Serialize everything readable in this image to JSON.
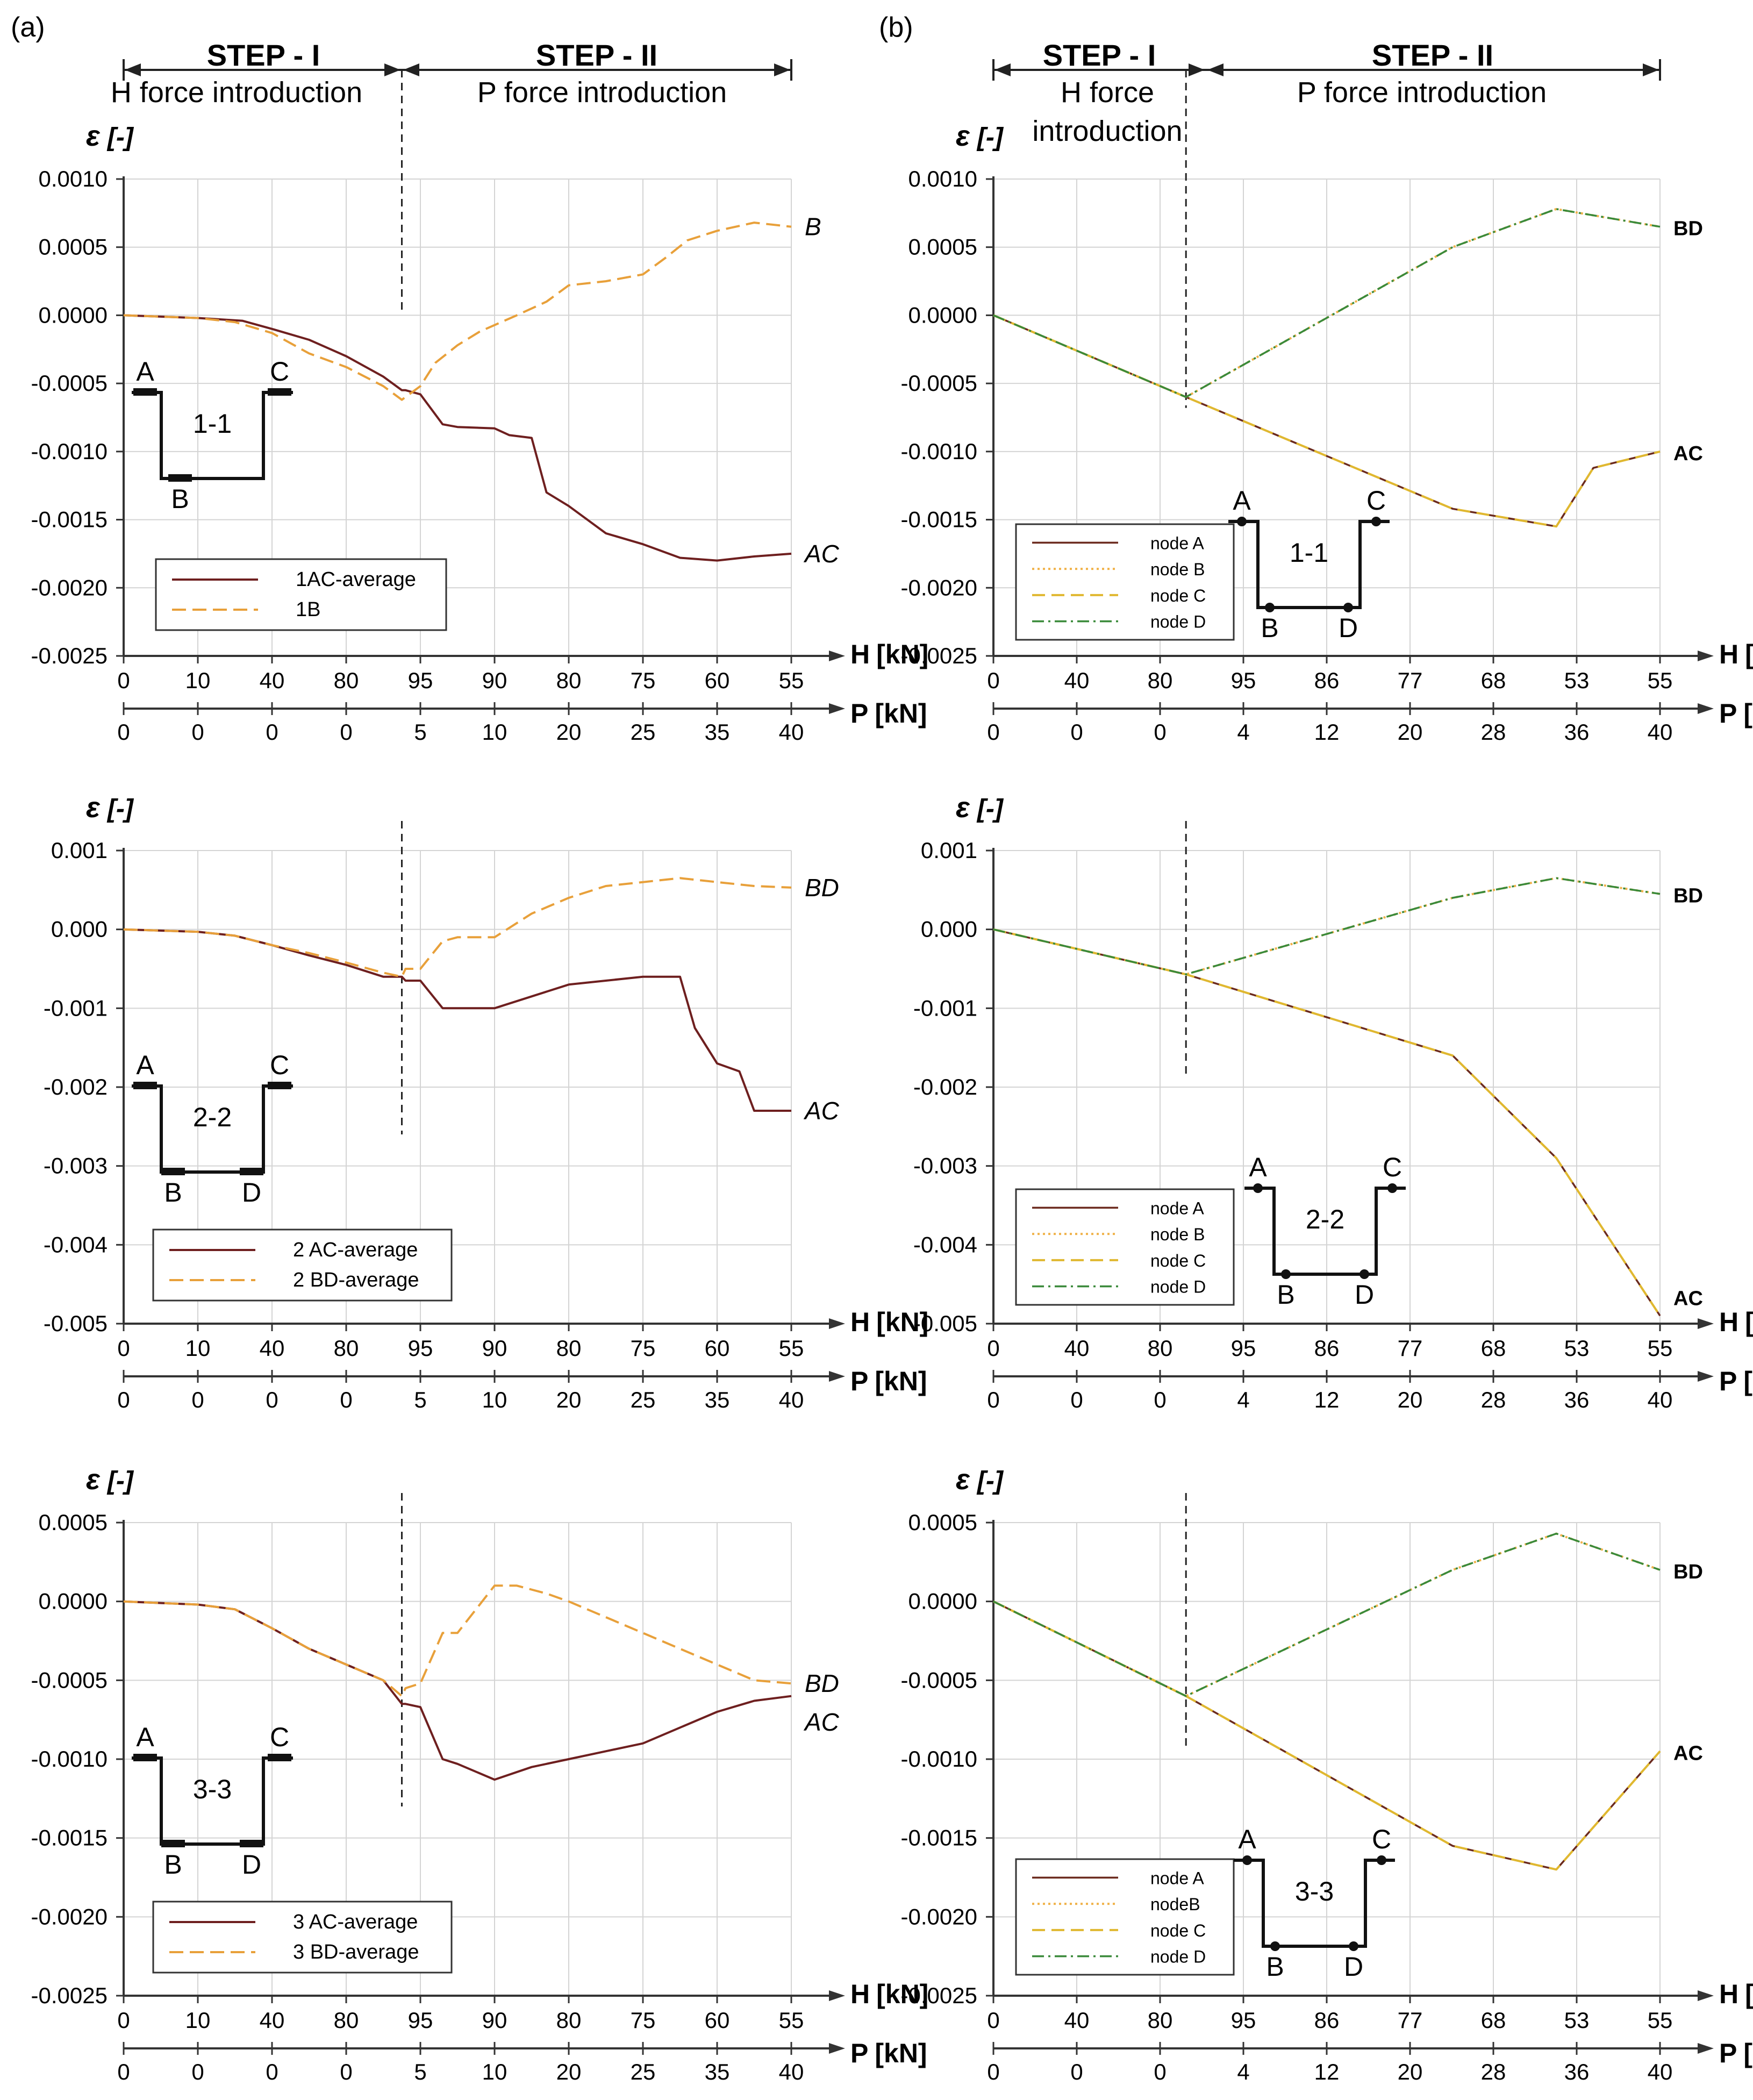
{
  "panel_labels": [
    "(a)",
    "(b)"
  ],
  "steps": {
    "step1_title": "STEP - I",
    "step2_title": "STEP - II",
    "a_step1_sub": "H force introduction",
    "b_step1_sub_line1": "H force",
    "b_step1_sub_line2": "introduction",
    "step2_sub": "P force introduction"
  },
  "axes": {
    "epsilon_symbol": "ε",
    "epsilon_unit": "[-]",
    "h_label": "H",
    "p_label": "P",
    "kn_unit": "[kN]"
  },
  "colors": {
    "ac_color": "#6e1f1f",
    "bd_color": "#e8a03a",
    "node_a": "#6b2a1e",
    "node_b": "#f0b24a",
    "node_c": "#e0b830",
    "node_d": "#3a8a3a",
    "axis": "#333333",
    "grid": "#d4d4d4"
  },
  "chart_data": [
    {
      "id": "a1",
      "type": "line",
      "section": "1-1",
      "h_ticks": [
        "0",
        "10",
        "40",
        "80",
        "95",
        "90",
        "80",
        "75",
        "60",
        "55"
      ],
      "p_ticks": [
        "0",
        "0",
        "0",
        "0",
        "5",
        "10",
        "20",
        "25",
        "35",
        "40"
      ],
      "ylim": [
        -0.0025,
        0.001
      ],
      "y_ticks": [
        "0.0010",
        "0.0005",
        "0.0000",
        "-0.0005",
        "-0.0010",
        "-0.0015",
        "-0.0020",
        "-0.0025"
      ],
      "end_labels": [
        "B",
        "AC"
      ],
      "legend": [
        "1AC-average",
        "1B"
      ],
      "section_letters": [
        "A",
        "C",
        "B"
      ],
      "series": [
        {
          "name": "1AC-average",
          "x": [
            0,
            1,
            1.6,
            2,
            2.5,
            3,
            3.5,
            3.75,
            3.8,
            4,
            4.3,
            4.5,
            5,
            5.2,
            5.5,
            5.7,
            6,
            6.5,
            7,
            7.5,
            8,
            8.5,
            9
          ],
          "values": [
            0,
            -2e-05,
            -4e-05,
            -0.0001,
            -0.00018,
            -0.0003,
            -0.00045,
            -0.00055,
            -0.00055,
            -0.00058,
            -0.0008,
            -0.00082,
            -0.00083,
            -0.00088,
            -0.0009,
            -0.0013,
            -0.0014,
            -0.0016,
            -0.00168,
            -0.00178,
            -0.0018,
            -0.00177,
            -0.00175
          ]
        },
        {
          "name": "1B",
          "x": [
            0,
            1,
            1.5,
            2,
            2.5,
            3,
            3.5,
            3.75,
            3.8,
            4,
            4.2,
            4.5,
            4.8,
            5.3,
            5.7,
            6,
            6.5,
            7,
            7.3,
            7.6,
            8,
            8.5,
            9
          ],
          "values": [
            0,
            -2e-05,
            -5e-05,
            -0.00013,
            -0.00028,
            -0.00038,
            -0.00052,
            -0.00062,
            -0.0006,
            -0.00052,
            -0.00035,
            -0.00022,
            -0.00012,
            0,
            0.0001,
            0.00022,
            0.00025,
            0.0003,
            0.00042,
            0.00055,
            0.00062,
            0.00068,
            0.00065
          ]
        }
      ]
    },
    {
      "id": "b1",
      "type": "line",
      "section": "1-1",
      "h_ticks": [
        "0",
        "40",
        "80",
        "95",
        "86",
        "77",
        "68",
        "53",
        "55"
      ],
      "p_ticks": [
        "0",
        "0",
        "0",
        "4",
        "12",
        "20",
        "28",
        "36",
        "40"
      ],
      "ylim": [
        -0.0025,
        0.001
      ],
      "y_ticks": [
        "0.0010",
        "0.0005",
        "0.0000",
        "-0.0005",
        "-0.0010",
        "-0.0015",
        "-0.0020",
        "-0.0025"
      ],
      "end_labels": [
        "BD",
        "AC"
      ],
      "legend": [
        "node A",
        "node B",
        "node C",
        "node D"
      ],
      "section_letters": [
        "A",
        "C",
        "B",
        "D"
      ],
      "series": [
        {
          "name": "node A",
          "x": [
            0,
            2.6,
            6.2,
            7.6,
            8.1,
            9
          ],
          "values": [
            0,
            -0.0006,
            -0.00142,
            -0.00155,
            -0.00112,
            -0.001
          ]
        },
        {
          "name": "node B",
          "x": [
            0,
            2.6,
            6.2,
            7.6,
            9
          ],
          "values": [
            0,
            -0.0006,
            0.0005,
            0.00078,
            0.00065
          ]
        },
        {
          "name": "node C",
          "x": [
            0,
            2.6,
            6.2,
            7.6,
            8.1,
            9
          ],
          "values": [
            0,
            -0.0006,
            -0.00142,
            -0.00155,
            -0.00112,
            -0.001
          ]
        },
        {
          "name": "node D",
          "x": [
            0,
            2.6,
            6.2,
            7.6,
            9
          ],
          "values": [
            0,
            -0.0006,
            0.0005,
            0.00078,
            0.00065
          ]
        }
      ]
    },
    {
      "id": "a2",
      "type": "line",
      "section": "2-2",
      "h_ticks": [
        "0",
        "10",
        "40",
        "80",
        "95",
        "90",
        "80",
        "75",
        "60",
        "55"
      ],
      "p_ticks": [
        "0",
        "0",
        "0",
        "0",
        "5",
        "10",
        "20",
        "25",
        "35",
        "40"
      ],
      "ylim": [
        -0.005,
        0.001
      ],
      "y_ticks": [
        "0.001",
        "0.000",
        "-0.001",
        "-0.002",
        "-0.003",
        "-0.004",
        "-0.005"
      ],
      "end_labels": [
        "BD",
        "AC"
      ],
      "legend": [
        "2 AC-average",
        "2 BD-average"
      ],
      "section_letters": [
        "A",
        "C",
        "B",
        "D"
      ],
      "series": [
        {
          "name": "2 AC-average",
          "x": [
            0,
            1,
            1.5,
            2,
            2.5,
            3,
            3.5,
            3.75,
            3.8,
            4,
            4.3,
            4.5,
            5,
            5.5,
            6,
            6.5,
            7,
            7.5,
            7.7,
            8,
            8.3,
            8.5,
            9
          ],
          "values": [
            0,
            -3e-05,
            -8e-05,
            -0.0002,
            -0.00033,
            -0.00045,
            -0.0006,
            -0.0006,
            -0.00065,
            -0.00065,
            -0.001,
            -0.001,
            -0.001,
            -0.00085,
            -0.0007,
            -0.00065,
            -0.0006,
            -0.0006,
            -0.00125,
            -0.0017,
            -0.0018,
            -0.0023,
            -0.0023
          ]
        },
        {
          "name": "2 BD-average",
          "x": [
            0,
            1,
            1.5,
            2,
            2.5,
            3,
            3.5,
            3.75,
            3.8,
            4,
            4.3,
            4.5,
            5,
            5.5,
            6,
            6.5,
            7,
            7.5,
            8,
            8.5,
            9
          ],
          "values": [
            0,
            -3e-05,
            -8e-05,
            -0.0002,
            -0.0003,
            -0.00042,
            -0.00055,
            -0.0006,
            -0.0005,
            -0.0005,
            -0.00015,
            -0.0001,
            -0.0001,
            0.0002,
            0.0004,
            0.00055,
            0.0006,
            0.00065,
            0.0006,
            0.00055,
            0.00053
          ]
        }
      ]
    },
    {
      "id": "b2",
      "type": "line",
      "section": "2-2",
      "h_ticks": [
        "0",
        "40",
        "80",
        "95",
        "86",
        "77",
        "68",
        "53",
        "55"
      ],
      "p_ticks": [
        "0",
        "0",
        "0",
        "4",
        "12",
        "20",
        "28",
        "36",
        "40"
      ],
      "ylim": [
        -0.005,
        0.001
      ],
      "y_ticks": [
        "0.001",
        "0.000",
        "-0.001",
        "-0.002",
        "-0.003",
        "-0.004",
        "-0.005"
      ],
      "end_labels": [
        "BD",
        "AC"
      ],
      "legend": [
        "node A",
        "node B",
        "node C",
        "node D"
      ],
      "section_letters": [
        "A",
        "C",
        "B",
        "D"
      ],
      "series": [
        {
          "name": "node A",
          "x": [
            0,
            2.6,
            6.2,
            7.6,
            9
          ],
          "values": [
            0,
            -0.00057,
            -0.0016,
            -0.0029,
            -0.0049
          ]
        },
        {
          "name": "node B",
          "x": [
            0,
            2.6,
            6.2,
            7.6,
            9
          ],
          "values": [
            0,
            -0.00057,
            0.0004,
            0.00065,
            0.00045
          ]
        },
        {
          "name": "node C",
          "x": [
            0,
            2.6,
            6.2,
            7.6,
            9
          ],
          "values": [
            0,
            -0.00057,
            -0.0016,
            -0.0029,
            -0.0049
          ]
        },
        {
          "name": "node D",
          "x": [
            0,
            2.6,
            6.2,
            7.6,
            9
          ],
          "values": [
            0,
            -0.00057,
            0.0004,
            0.00065,
            0.00045
          ]
        }
      ]
    },
    {
      "id": "a3",
      "type": "line",
      "section": "3-3",
      "h_ticks": [
        "0",
        "10",
        "40",
        "80",
        "95",
        "90",
        "80",
        "75",
        "60",
        "55"
      ],
      "p_ticks": [
        "0",
        "0",
        "0",
        "0",
        "5",
        "10",
        "20",
        "25",
        "35",
        "40"
      ],
      "ylim": [
        -0.0025,
        0.0005
      ],
      "y_ticks": [
        "0.0005",
        "0.0000",
        "-0.0005",
        "-0.0010",
        "-0.0015",
        "-0.0020",
        "-0.0025"
      ],
      "end_labels": [
        "BD",
        "AC"
      ],
      "legend": [
        "3 AC-average",
        "3 BD-average"
      ],
      "section_letters": [
        "A",
        "C",
        "B",
        "D"
      ],
      "series": [
        {
          "name": "3 AC-average",
          "x": [
            0,
            1,
            1.5,
            2,
            2.5,
            3,
            3.5,
            3.75,
            3.8,
            4,
            4.3,
            4.5,
            5,
            5.5,
            6,
            6.5,
            7,
            7.5,
            8,
            8.5,
            9
          ],
          "values": [
            0,
            -2e-05,
            -5e-05,
            -0.00017,
            -0.0003,
            -0.0004,
            -0.0005,
            -0.00065,
            -0.00065,
            -0.00067,
            -0.001,
            -0.00103,
            -0.00113,
            -0.00105,
            -0.001,
            -0.00095,
            -0.0009,
            -0.0008,
            -0.0007,
            -0.00063,
            -0.0006
          ]
        },
        {
          "name": "3 BD-average",
          "x": [
            0,
            1,
            1.5,
            2,
            2.5,
            3,
            3.5,
            3.75,
            3.8,
            4,
            4.3,
            4.5,
            5,
            5.3,
            5.7,
            6,
            6.5,
            7,
            7.5,
            8,
            8.5,
            9
          ],
          "values": [
            0,
            -2e-05,
            -5e-05,
            -0.00017,
            -0.0003,
            -0.0004,
            -0.0005,
            -0.0006,
            -0.00055,
            -0.00052,
            -0.0002,
            -0.0002,
            0.0001,
            0.0001,
            5e-05,
            0,
            -0.0001,
            -0.0002,
            -0.0003,
            -0.0004,
            -0.0005,
            -0.00052
          ]
        }
      ]
    },
    {
      "id": "b3",
      "type": "line",
      "section": "3-3",
      "h_ticks": [
        "0",
        "40",
        "80",
        "95",
        "86",
        "77",
        "68",
        "53",
        "55"
      ],
      "p_ticks": [
        "0",
        "0",
        "0",
        "4",
        "12",
        "20",
        "28",
        "36",
        "40"
      ],
      "ylim": [
        -0.0025,
        0.0005
      ],
      "y_ticks": [
        "0.0005",
        "0.0000",
        "-0.0005",
        "-0.0010",
        "-0.0015",
        "-0.0020",
        "-0.0025"
      ],
      "end_labels": [
        "BD",
        "AC"
      ],
      "legend": [
        "node A",
        "nodeB",
        "node C",
        "node D"
      ],
      "section_letters": [
        "A",
        "C",
        "B",
        "D"
      ],
      "series": [
        {
          "name": "node A",
          "x": [
            0,
            2.6,
            6.2,
            7.6,
            9
          ],
          "values": [
            0,
            -0.0006,
            -0.00155,
            -0.0017,
            -0.00095
          ]
        },
        {
          "name": "node B",
          "x": [
            0,
            2.6,
            6.2,
            7.6,
            9
          ],
          "values": [
            0,
            -0.0006,
            0.0002,
            0.00043,
            0.0002
          ]
        },
        {
          "name": "node C",
          "x": [
            0,
            2.6,
            6.2,
            7.6,
            9
          ],
          "values": [
            0,
            -0.0006,
            -0.00155,
            -0.0017,
            -0.00095
          ]
        },
        {
          "name": "node D",
          "x": [
            0,
            2.6,
            6.2,
            7.6,
            9
          ],
          "values": [
            0,
            -0.0006,
            0.0002,
            0.00043,
            0.0002
          ]
        }
      ]
    }
  ]
}
